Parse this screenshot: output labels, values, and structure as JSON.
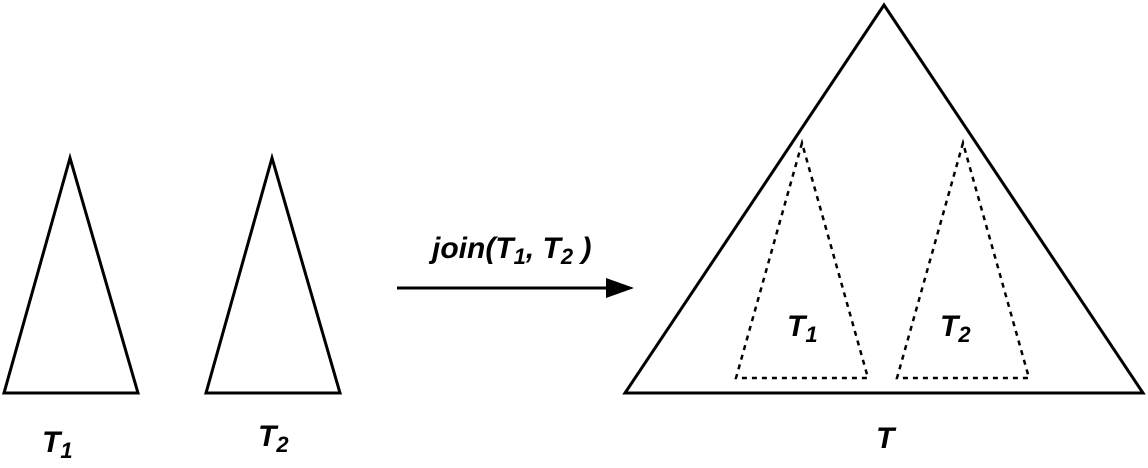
{
  "diagram": {
    "left_tree_1": {
      "name": "T",
      "subscript": "1"
    },
    "left_tree_2": {
      "name": "T",
      "subscript": "2"
    },
    "operation": {
      "func": "join(T",
      "sub1": "1",
      "mid": ", T",
      "sub2": "2",
      "close": " )"
    },
    "result_tree": {
      "name": "T",
      "inner_1": {
        "name": "T",
        "subscript": "1"
      },
      "inner_2": {
        "name": "T",
        "subscript": "2"
      }
    }
  }
}
